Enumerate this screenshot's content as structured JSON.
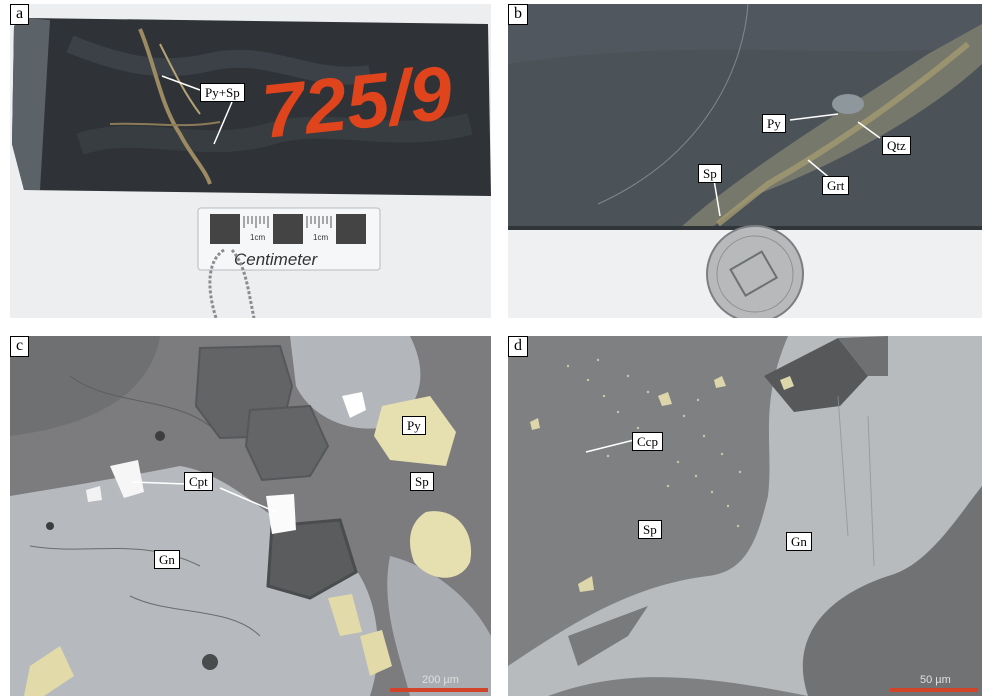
{
  "panels": {
    "a": {
      "label": "a",
      "tags": {
        "py_sp": "Py+Sp"
      },
      "sample_number": "725/9",
      "scale_card": {
        "tick1": "1cm",
        "tick2": "1cm",
        "title": "Centimeter"
      }
    },
    "b": {
      "label": "b",
      "tags": {
        "py": "Py",
        "qtz": "Qtz",
        "sp": "Sp",
        "grt": "Grt"
      }
    },
    "c": {
      "label": "c",
      "tags": {
        "py": "Py",
        "cpt": "Cpt",
        "sp": "Sp",
        "gn": "Gn"
      },
      "scale_text": "200 µm"
    },
    "d": {
      "label": "d",
      "tags": {
        "ccp": "Ccp",
        "sp": "Sp",
        "gn": "Gn"
      },
      "scale_text": "50 µm"
    }
  },
  "colors": {
    "rock_dark": "#2e3236",
    "rock_grey": "#4a5157",
    "paper": "#eef0f2",
    "orange_paint": "#e0441c",
    "pyrite": "#e6dfb0",
    "sphalerite": "#7d7d7d",
    "galena": "#b9bcc0",
    "scale_bar": "#d2442a"
  }
}
